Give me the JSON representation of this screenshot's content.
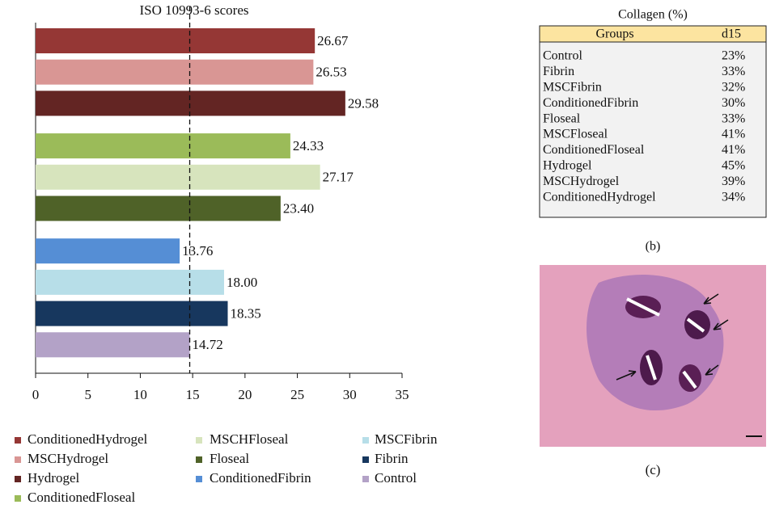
{
  "chart_data": {
    "type": "barh",
    "title": "ISO 10993-6 scores",
    "categories": [
      "ConditionedHydrogel",
      "MSCHydrogel",
      "Hydrogel",
      "ConditionedFloseal",
      "MSCHFloseal",
      "Floseal",
      "ConditionedFibrin",
      "MSCFibrin",
      "Fibrin",
      "Control"
    ],
    "values": [
      26.67,
      26.53,
      29.58,
      24.33,
      27.17,
      23.4,
      13.76,
      18.0,
      18.35,
      14.72
    ],
    "value_labels": [
      "26.67",
      "26.53",
      "29.58",
      "24.33",
      "27.17",
      "23.40",
      "13.76",
      "18.00",
      "18.35",
      "14.72"
    ],
    "colors": [
      "#953735",
      "#d99694",
      "#632523",
      "#9bbb59",
      "#d7e4bd",
      "#4f6228",
      "#558ed5",
      "#b7dee8",
      "#17375e",
      "#b3a2c7"
    ],
    "xlim": [
      0,
      35
    ],
    "xticks": [
      0,
      5,
      10,
      15,
      20,
      25,
      30,
      35
    ],
    "reference_line": 14.72
  },
  "table": {
    "title": "Collagen (%)",
    "header": [
      "Groups",
      "d15"
    ],
    "rows": [
      [
        "Control",
        "23%"
      ],
      [
        "Fibrin",
        "33%"
      ],
      [
        "MSCFibrin",
        "32%"
      ],
      [
        "ConditionedFibrin",
        "30%"
      ],
      [
        "Floseal",
        "33%"
      ],
      [
        "MSCFloseal",
        "41%"
      ],
      [
        "ConditionedFloseal",
        "41%"
      ],
      [
        "Hydrogel",
        "45%"
      ],
      [
        "MSCHydrogel",
        "39%"
      ],
      [
        "ConditionedHydrogel",
        "34%"
      ]
    ],
    "caption": "(b)"
  },
  "image": {
    "caption": "(c)"
  }
}
